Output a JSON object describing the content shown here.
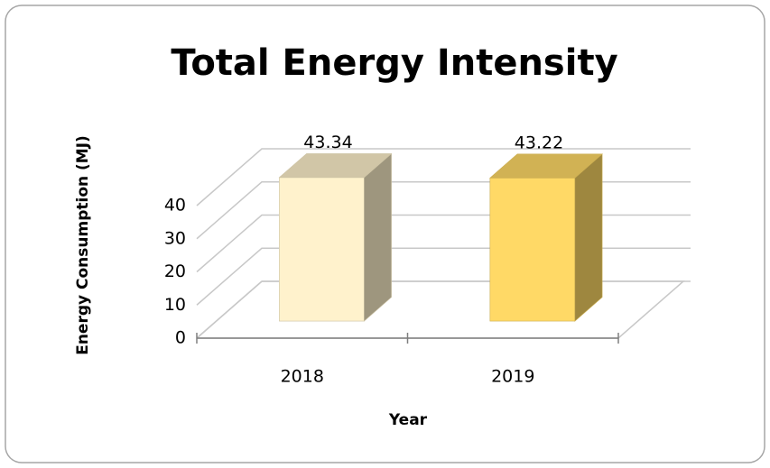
{
  "chart_data": {
    "type": "bar3d",
    "title": "Total Energy Intensity",
    "y_label": "Energy Consumption (MJ)",
    "x_label": "Year",
    "categories": [
      "2018",
      "2019"
    ],
    "values": [
      43.34,
      43.22
    ],
    "colors": [
      "#fff2cc",
      "#ffd966"
    ],
    "ylim": [
      0,
      40
    ],
    "yticks": [
      0,
      10,
      20,
      30,
      40
    ],
    "grid": true
  }
}
